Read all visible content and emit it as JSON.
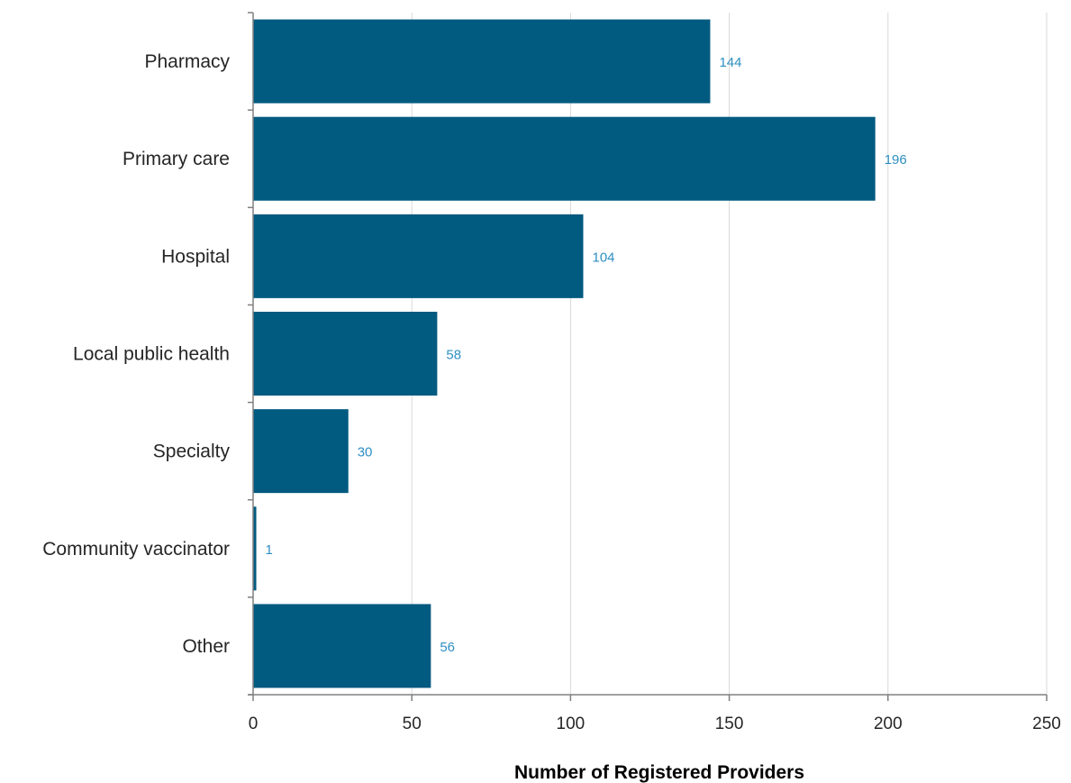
{
  "chart_data": {
    "type": "bar",
    "orientation": "horizontal",
    "categories": [
      "Pharmacy",
      "Primary care",
      "Hospital",
      "Local public health",
      "Specialty",
      "Community vaccinator",
      "Other"
    ],
    "values": [
      144,
      196,
      104,
      58,
      30,
      1,
      56
    ],
    "data_labels": [
      "144",
      "196",
      "104",
      "58",
      "30",
      "1",
      "56"
    ],
    "xlabel": "Number of Registered Providers",
    "ylabel": "",
    "xlim": [
      0,
      250
    ],
    "x_ticks": [
      0,
      50,
      100,
      150,
      200,
      250
    ],
    "x_tick_labels": [
      "0",
      "50",
      "100",
      "150",
      "200",
      "250"
    ],
    "grid": "vertical",
    "legend": "none"
  },
  "colors": {
    "bar": "#015a80",
    "data_label": "#2e8fc2",
    "gridline": "#d9d9d9",
    "axis": "#808080",
    "text": "#262626"
  }
}
